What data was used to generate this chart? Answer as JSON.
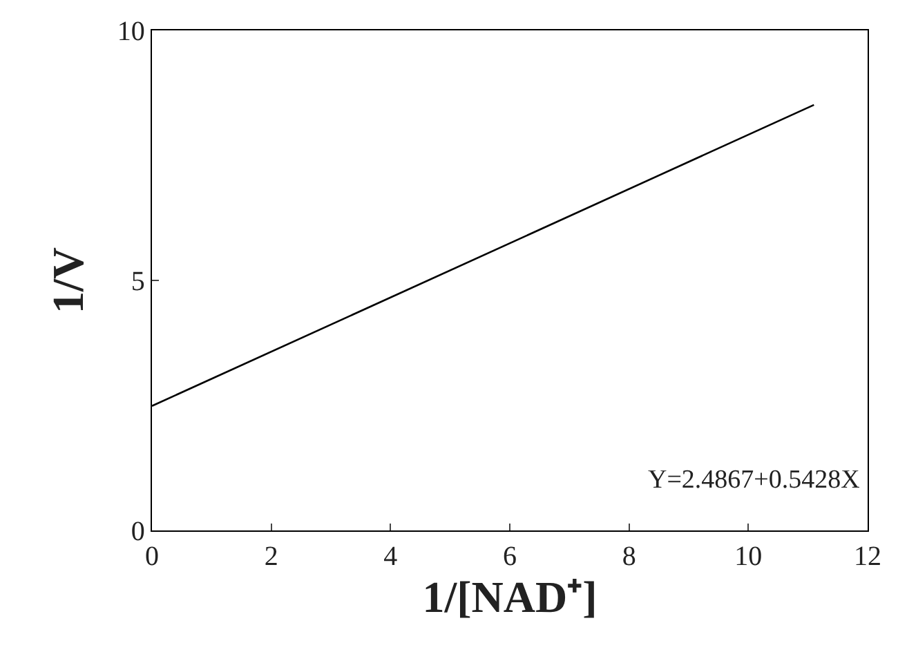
{
  "chart_data": {
    "type": "line",
    "xlabel": "1/[NAD⁺]",
    "ylabel": "1/V",
    "x": [
      0,
      11.1
    ],
    "series": [
      {
        "color": "#000000",
        "values": [
          2.49,
          8.51
        ]
      }
    ],
    "xlim": [
      0,
      12
    ],
    "xticks": [
      0,
      2,
      4,
      6,
      8,
      10,
      12
    ],
    "ylim": [
      0,
      10
    ],
    "yticks": [
      0,
      5,
      10
    ],
    "grid": false,
    "marker": "none",
    "line_style": "solid",
    "annotations": [
      "Y=2.4867+0.5428X"
    ]
  }
}
